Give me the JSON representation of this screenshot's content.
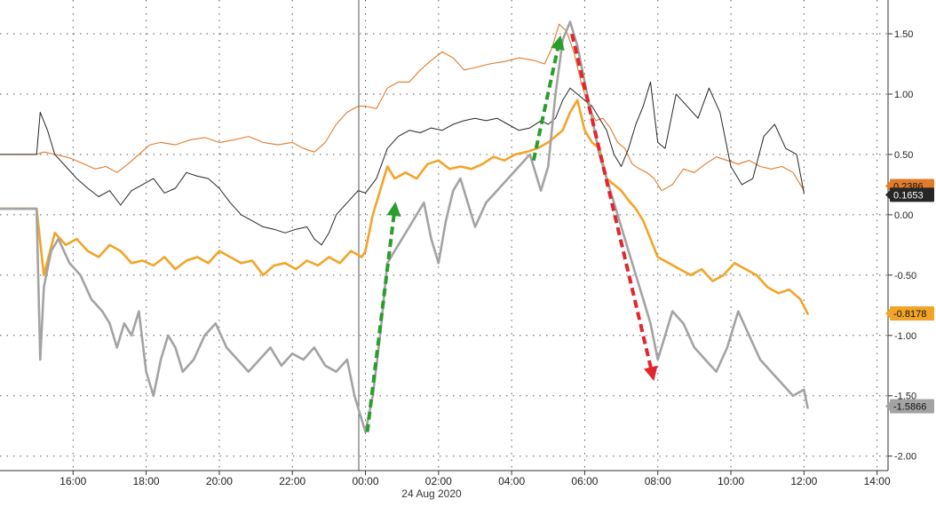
{
  "chart_data": {
    "type": "line",
    "title": "",
    "xlabel": "24 Aug 2020",
    "ylabel": "",
    "x_unit": "hours (time of day, 14:00 on 23 Aug to 14:00 on 24 Aug 2020)",
    "x_ticks": [
      {
        "v": 16,
        "label": "16:00"
      },
      {
        "v": 18,
        "label": "18:00"
      },
      {
        "v": 20,
        "label": "20:00"
      },
      {
        "v": 22,
        "label": "22:00"
      },
      {
        "v": 24,
        "label": "00:00"
      },
      {
        "v": 26,
        "label": "02:00"
      },
      {
        "v": 28,
        "label": "04:00"
      },
      {
        "v": 30,
        "label": "06:00"
      },
      {
        "v": 32,
        "label": "08:00"
      },
      {
        "v": 34,
        "label": "10:00"
      },
      {
        "v": 36,
        "label": "12:00"
      },
      {
        "v": 38,
        "label": "14:00"
      }
    ],
    "y_ticks": [
      {
        "v": 1.5,
        "label": "1.50"
      },
      {
        "v": 1.0,
        "label": "1.00"
      },
      {
        "v": 0.5,
        "label": "0.50"
      },
      {
        "v": 0.0,
        "label": "0.00"
      },
      {
        "v": -0.5,
        "label": "-0.50"
      },
      {
        "v": -1.0,
        "label": "-1.00"
      },
      {
        "v": -1.5,
        "label": "-1.50"
      },
      {
        "v": -2.0,
        "label": "-2.00"
      }
    ],
    "xlim": [
      14,
      38.3
    ],
    "ylim": [
      -2.12,
      1.78
    ],
    "grid": true,
    "series": [
      {
        "color": "#e07b2a",
        "width": 1.1,
        "last_value": 0.2386,
        "x": [
          15.0,
          15.2,
          15.5,
          15.8,
          16.0,
          16.3,
          16.6,
          16.9,
          17.2,
          17.5,
          17.8,
          18.1,
          18.4,
          18.8,
          19.2,
          19.6,
          20.0,
          20.4,
          20.8,
          21.2,
          21.6,
          22.0,
          22.3,
          22.6,
          22.9,
          23.2,
          23.5,
          23.8,
          24.0,
          24.3,
          24.6,
          24.9,
          25.2,
          25.5,
          25.8,
          26.1,
          26.4,
          26.7,
          27.0,
          27.4,
          27.8,
          28.2,
          28.6,
          28.9,
          29.1,
          29.3,
          29.5,
          29.7,
          29.9,
          30.1,
          30.3,
          30.5,
          30.7,
          30.9,
          31.1,
          31.3,
          31.5,
          31.7,
          31.9,
          32.1,
          32.4,
          32.7,
          33.0,
          33.3,
          33.6,
          33.9,
          34.2,
          34.5,
          34.8,
          35.1,
          35.4,
          35.7,
          36.0
        ],
        "y": [
          0.5,
          0.52,
          0.5,
          0.48,
          0.46,
          0.42,
          0.38,
          0.4,
          0.35,
          0.42,
          0.5,
          0.58,
          0.6,
          0.58,
          0.62,
          0.64,
          0.6,
          0.62,
          0.65,
          0.6,
          0.58,
          0.6,
          0.55,
          0.52,
          0.6,
          0.75,
          0.85,
          0.9,
          0.9,
          0.88,
          1.05,
          1.1,
          1.1,
          1.2,
          1.28,
          1.35,
          1.3,
          1.2,
          1.22,
          1.25,
          1.27,
          1.3,
          1.28,
          1.25,
          1.38,
          1.58,
          1.52,
          1.35,
          1.1,
          0.9,
          0.78,
          0.8,
          0.72,
          0.6,
          0.55,
          0.42,
          0.38,
          0.35,
          0.3,
          0.2,
          0.25,
          0.38,
          0.35,
          0.42,
          0.48,
          0.45,
          0.42,
          0.45,
          0.4,
          0.38,
          0.4,
          0.35,
          0.2
        ]
      },
      {
        "color": "#262626",
        "width": 1.0,
        "last_value": 0.1653,
        "x": [
          15.0,
          15.1,
          15.3,
          15.5,
          15.8,
          16.1,
          16.4,
          16.7,
          17.0,
          17.3,
          17.6,
          17.9,
          18.2,
          18.5,
          18.8,
          19.1,
          19.4,
          19.7,
          20.0,
          20.3,
          20.6,
          20.9,
          21.2,
          21.5,
          21.8,
          22.1,
          22.4,
          22.6,
          22.8,
          23.0,
          23.2,
          23.5,
          23.8,
          24.0,
          24.3,
          24.6,
          24.9,
          25.2,
          25.5,
          25.8,
          26.1,
          26.4,
          26.7,
          27.0,
          27.3,
          27.6,
          27.9,
          28.2,
          28.5,
          28.8,
          29.0,
          29.2,
          29.4,
          29.6,
          29.8,
          30.0,
          30.2,
          30.4,
          30.6,
          30.8,
          31.0,
          31.2,
          31.4,
          31.6,
          31.8,
          32.0,
          32.2,
          32.5,
          32.8,
          33.1,
          33.4,
          33.7,
          34.0,
          34.3,
          34.6,
          34.9,
          35.2,
          35.5,
          35.8,
          36.0
        ],
        "y": [
          0.5,
          0.85,
          0.7,
          0.5,
          0.4,
          0.3,
          0.22,
          0.15,
          0.2,
          0.08,
          0.2,
          0.25,
          0.3,
          0.18,
          0.22,
          0.35,
          0.32,
          0.3,
          0.22,
          0.1,
          0.0,
          -0.05,
          -0.1,
          -0.12,
          -0.15,
          -0.12,
          -0.1,
          -0.2,
          -0.25,
          -0.15,
          0.0,
          0.1,
          0.2,
          0.18,
          0.3,
          0.55,
          0.65,
          0.7,
          0.68,
          0.72,
          0.7,
          0.75,
          0.78,
          0.8,
          0.78,
          0.8,
          0.75,
          0.7,
          0.72,
          0.78,
          0.75,
          0.8,
          0.95,
          1.05,
          1.0,
          0.95,
          0.9,
          0.8,
          0.7,
          0.5,
          0.4,
          0.55,
          0.75,
          0.9,
          1.1,
          0.6,
          0.55,
          1.0,
          0.9,
          0.8,
          1.05,
          0.85,
          0.4,
          0.25,
          0.3,
          0.65,
          0.75,
          0.55,
          0.5,
          0.18
        ]
      },
      {
        "color": "#f2a428",
        "width": 2.6,
        "last_value": -0.8178,
        "x": [
          15.0,
          15.2,
          15.5,
          15.8,
          16.1,
          16.4,
          16.7,
          17.0,
          17.3,
          17.6,
          17.9,
          18.2,
          18.5,
          18.8,
          19.1,
          19.4,
          19.7,
          20.0,
          20.3,
          20.6,
          20.9,
          21.2,
          21.5,
          21.8,
          22.1,
          22.4,
          22.7,
          23.0,
          23.3,
          23.6,
          23.9,
          24.0,
          24.2,
          24.4,
          24.6,
          24.8,
          25.1,
          25.4,
          25.7,
          26.0,
          26.3,
          26.6,
          26.9,
          27.2,
          27.5,
          27.8,
          28.1,
          28.4,
          28.7,
          29.0,
          29.2,
          29.4,
          29.6,
          29.8,
          30.0,
          30.2,
          30.4,
          30.6,
          30.8,
          31.0,
          31.2,
          31.4,
          31.6,
          31.8,
          32.0,
          32.3,
          32.6,
          32.9,
          33.2,
          33.5,
          33.8,
          34.1,
          34.4,
          34.7,
          35.0,
          35.3,
          35.6,
          35.9,
          36.1
        ],
        "y": [
          0.05,
          -0.5,
          -0.15,
          -0.25,
          -0.2,
          -0.3,
          -0.35,
          -0.25,
          -0.3,
          -0.4,
          -0.38,
          -0.42,
          -0.35,
          -0.45,
          -0.38,
          -0.35,
          -0.4,
          -0.3,
          -0.35,
          -0.4,
          -0.38,
          -0.5,
          -0.42,
          -0.4,
          -0.45,
          -0.38,
          -0.42,
          -0.35,
          -0.4,
          -0.3,
          -0.35,
          -0.3,
          0.0,
          0.2,
          0.4,
          0.3,
          0.35,
          0.3,
          0.42,
          0.45,
          0.38,
          0.4,
          0.38,
          0.42,
          0.48,
          0.45,
          0.5,
          0.52,
          0.55,
          0.6,
          0.65,
          0.7,
          0.85,
          0.95,
          0.7,
          0.6,
          0.55,
          0.3,
          0.25,
          0.2,
          0.12,
          0.05,
          -0.05,
          -0.2,
          -0.35,
          -0.4,
          -0.45,
          -0.5,
          -0.45,
          -0.55,
          -0.5,
          -0.4,
          -0.45,
          -0.5,
          -0.6,
          -0.65,
          -0.62,
          -0.7,
          -0.82
        ]
      },
      {
        "color": "#a3a3a3",
        "width": 2.6,
        "last_value": -1.5866,
        "x": [
          15.0,
          15.1,
          15.2,
          15.4,
          15.6,
          15.9,
          16.2,
          16.5,
          16.8,
          17.0,
          17.2,
          17.4,
          17.6,
          17.8,
          18.0,
          18.2,
          18.4,
          18.6,
          18.8,
          19.0,
          19.3,
          19.6,
          19.9,
          20.2,
          20.5,
          20.8,
          21.1,
          21.4,
          21.7,
          22.0,
          22.3,
          22.6,
          22.9,
          23.2,
          23.5,
          23.7,
          23.9,
          24.0,
          24.2,
          24.4,
          24.6,
          24.8,
          25.0,
          25.2,
          25.4,
          25.6,
          25.8,
          26.0,
          26.2,
          26.4,
          26.6,
          26.8,
          27.0,
          27.3,
          27.6,
          27.9,
          28.2,
          28.5,
          28.8,
          29.0,
          29.2,
          29.4,
          29.6,
          29.8,
          30.0,
          30.2,
          30.4,
          30.6,
          30.8,
          31.0,
          31.2,
          31.4,
          31.6,
          31.8,
          32.0,
          32.2,
          32.4,
          32.7,
          33.0,
          33.3,
          33.6,
          33.9,
          34.2,
          34.5,
          34.8,
          35.1,
          35.4,
          35.7,
          36.0,
          36.1
        ],
        "y": [
          0.05,
          -1.2,
          -0.6,
          -0.3,
          -0.2,
          -0.4,
          -0.5,
          -0.7,
          -0.8,
          -0.9,
          -1.1,
          -0.9,
          -1.0,
          -0.8,
          -1.3,
          -1.5,
          -1.2,
          -1.0,
          -1.1,
          -1.3,
          -1.2,
          -1.0,
          -0.9,
          -1.1,
          -1.2,
          -1.3,
          -1.2,
          -1.1,
          -1.25,
          -1.15,
          -1.2,
          -1.1,
          -1.25,
          -1.3,
          -1.2,
          -1.5,
          -1.7,
          -1.8,
          -1.5,
          -1.0,
          -0.4,
          -0.3,
          -0.2,
          -0.1,
          0.0,
          0.1,
          -0.2,
          -0.4,
          -0.05,
          0.2,
          0.3,
          0.1,
          -0.1,
          0.1,
          0.2,
          0.3,
          0.4,
          0.5,
          0.2,
          0.4,
          1.0,
          1.45,
          1.6,
          1.4,
          1.1,
          0.8,
          0.5,
          0.3,
          0.1,
          -0.1,
          -0.3,
          -0.5,
          -0.7,
          -0.9,
          -1.2,
          -1.0,
          -0.8,
          -0.9,
          -1.1,
          -1.2,
          -1.3,
          -1.1,
          -0.8,
          -1.0,
          -1.2,
          -1.3,
          -1.4,
          -1.5,
          -1.45,
          -1.6
        ]
      }
    ],
    "annotations": [
      {
        "type": "arrow",
        "color": "#2a9d2a",
        "from": [
          24.05,
          -1.8
        ],
        "to": [
          24.8,
          0.05
        ]
      },
      {
        "type": "arrow",
        "color": "#2a9d2a",
        "from": [
          28.6,
          0.45
        ],
        "to": [
          29.3,
          1.43
        ]
      },
      {
        "type": "arrow",
        "color": "#e3262e",
        "from": [
          29.65,
          1.5
        ],
        "to": [
          31.85,
          -1.32
        ]
      }
    ]
  }
}
